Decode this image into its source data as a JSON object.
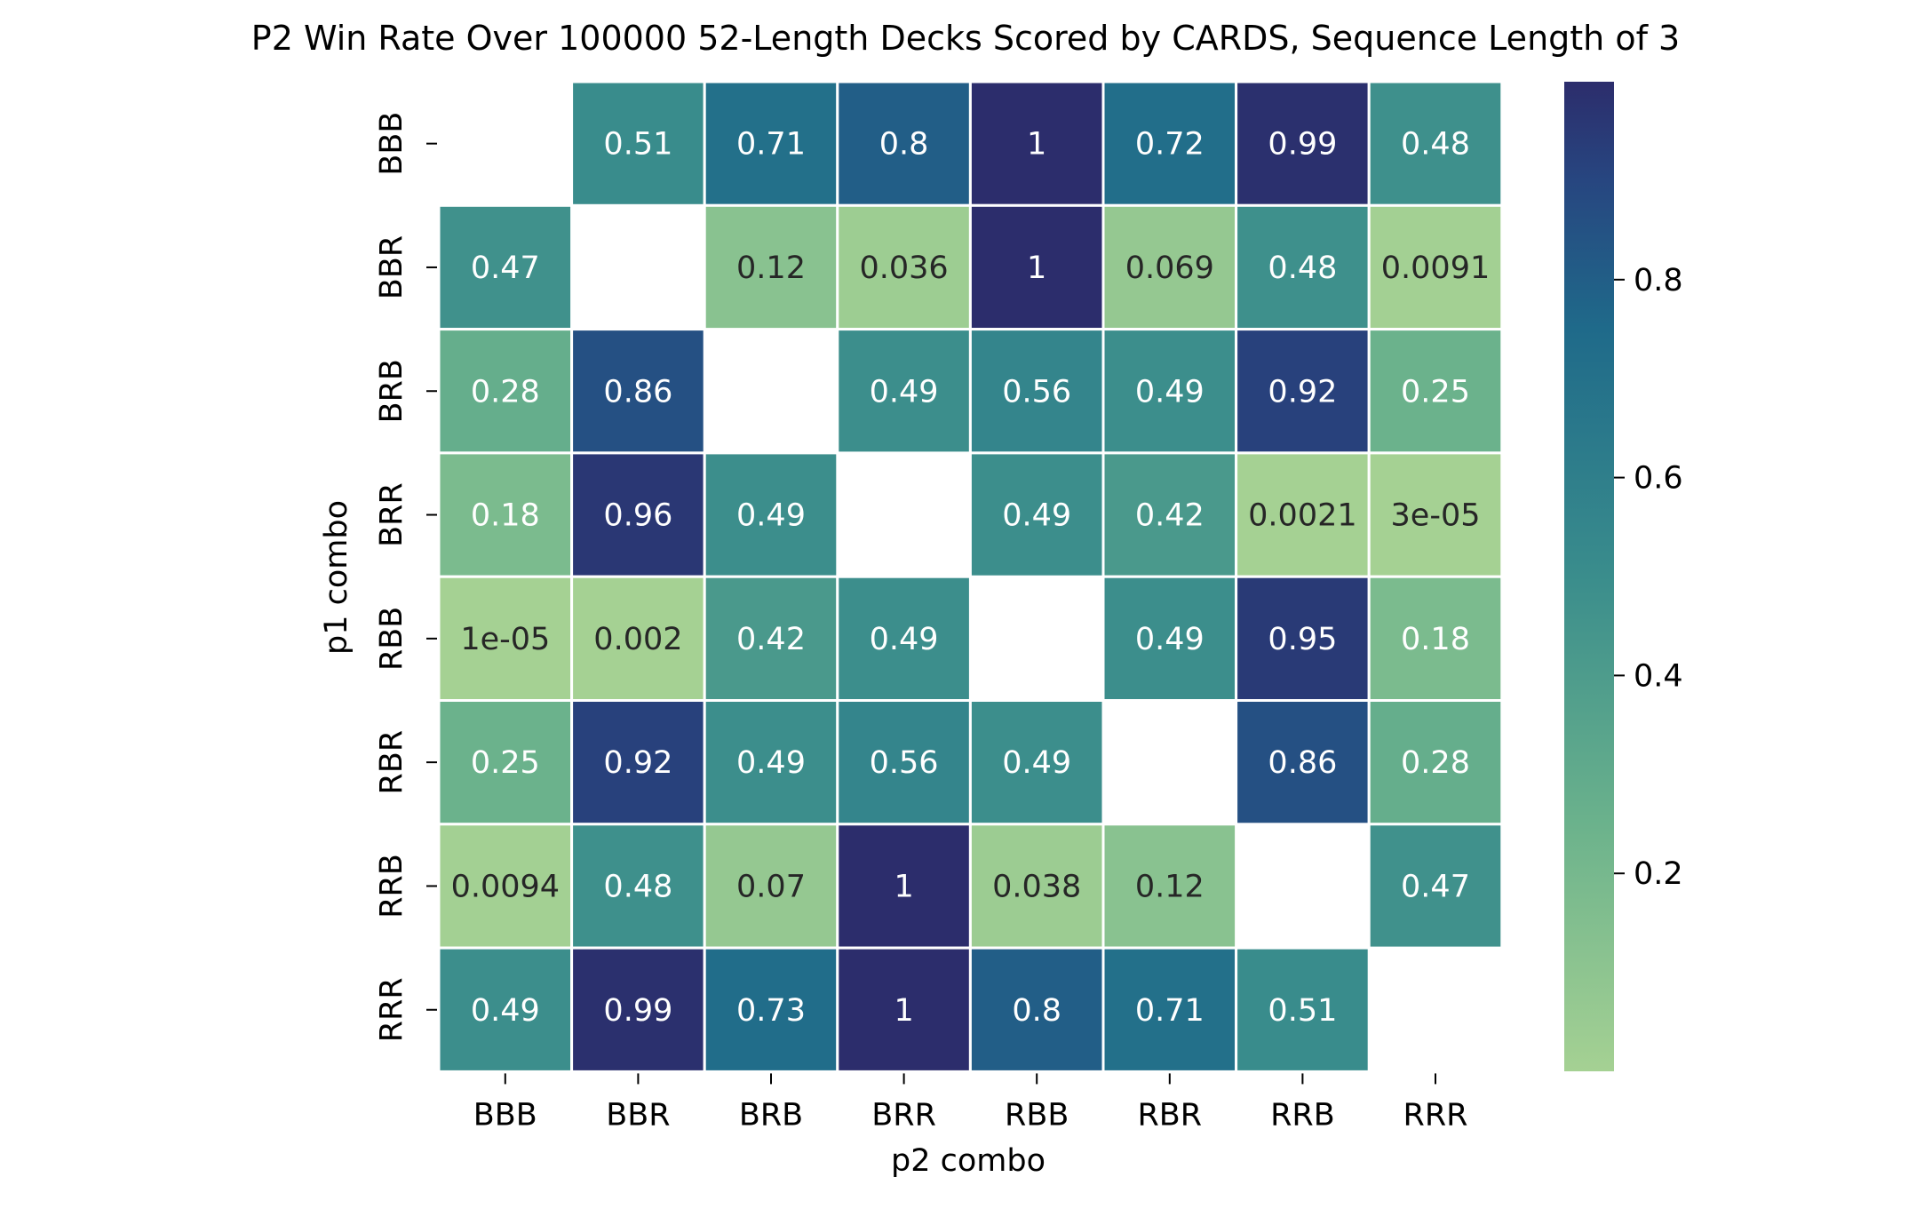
{
  "chart_data": {
    "type": "heatmap",
    "title": "P2 Win Rate Over 100000 52-Length Decks Scored by CARDS, Sequence Length of 3",
    "xlabel": "p2 combo",
    "ylabel": "p1 combo",
    "x_categories": [
      "BBB",
      "BBR",
      "BRB",
      "BRR",
      "RBB",
      "RBR",
      "RRB",
      "RRR"
    ],
    "y_categories": [
      "BBB",
      "BBR",
      "BRB",
      "BRR",
      "RBB",
      "RBR",
      "RRB",
      "RRR"
    ],
    "values": [
      [
        null,
        0.51,
        0.71,
        0.8,
        1,
        0.72,
        0.99,
        0.48
      ],
      [
        0.47,
        null,
        0.12,
        0.036,
        1,
        0.069,
        0.48,
        0.0091
      ],
      [
        0.28,
        0.86,
        null,
        0.49,
        0.56,
        0.49,
        0.92,
        0.25
      ],
      [
        0.18,
        0.96,
        0.49,
        null,
        0.49,
        0.42,
        0.0021,
        3e-05
      ],
      [
        1e-05,
        0.002,
        0.42,
        0.49,
        null,
        0.49,
        0.95,
        0.18
      ],
      [
        0.25,
        0.92,
        0.49,
        0.56,
        0.49,
        null,
        0.86,
        0.28
      ],
      [
        0.0094,
        0.48,
        0.07,
        1,
        0.038,
        0.12,
        null,
        0.47
      ],
      [
        0.49,
        0.99,
        0.73,
        1,
        0.8,
        0.71,
        0.51,
        null
      ]
    ],
    "annotations": [
      [
        "",
        "0.51",
        "0.71",
        "0.8",
        "1",
        "0.72",
        "0.99",
        "0.48"
      ],
      [
        "0.47",
        "",
        "0.12",
        "0.036",
        "1",
        "0.069",
        "0.48",
        "0.0091"
      ],
      [
        "0.28",
        "0.86",
        "",
        "0.49",
        "0.56",
        "0.49",
        "0.92",
        "0.25"
      ],
      [
        "0.18",
        "0.96",
        "0.49",
        "",
        "0.49",
        "0.42",
        "0.0021",
        "3e-05"
      ],
      [
        "1e-05",
        "0.002",
        "0.42",
        "0.49",
        "",
        "0.49",
        "0.95",
        "0.18"
      ],
      [
        "0.25",
        "0.92",
        "0.49",
        "0.56",
        "0.49",
        "",
        "0.86",
        "0.28"
      ],
      [
        "0.0094",
        "0.48",
        "0.07",
        "1",
        "0.038",
        "0.12",
        "",
        "0.47"
      ],
      [
        "0.49",
        "0.99",
        "0.73",
        "1",
        "0.8",
        "0.71",
        "0.51",
        ""
      ]
    ],
    "colormap": "crest",
    "colorbar": {
      "min": 1e-05,
      "max": 1,
      "ticks": [
        0.2,
        0.4,
        0.6,
        0.8
      ],
      "tick_labels": [
        "0.2",
        "0.4",
        "0.6",
        "0.8"
      ]
    },
    "colors": {
      "low": "#a5d193",
      "mid": "#3a8d8c",
      "high": "#2c2d6c",
      "cell_border": "#ffffff",
      "text_light": "#ffffff",
      "text_dark": "#262626"
    }
  }
}
